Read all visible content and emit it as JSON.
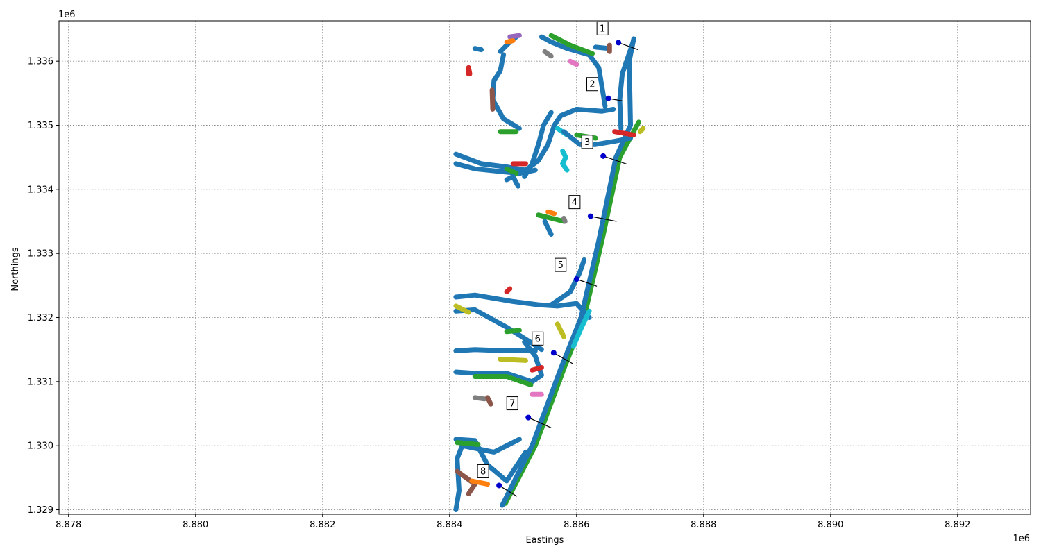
{
  "chart_data": {
    "type": "scatter",
    "title": "",
    "xlabel": "Eastings",
    "ylabel": "Northings",
    "x_offset_label": "1e6",
    "y_offset_label": "1e6",
    "xlim": [
      8.87785,
      8.89315
    ],
    "ylim": [
      1.32893,
      1.33663
    ],
    "x_ticks": [
      {
        "value": 8.878,
        "label": "8.878"
      },
      {
        "value": 8.88,
        "label": "8.880"
      },
      {
        "value": 8.882,
        "label": "8.882"
      },
      {
        "value": 8.884,
        "label": "8.884"
      },
      {
        "value": 8.886,
        "label": "8.886"
      },
      {
        "value": 8.888,
        "label": "8.888"
      },
      {
        "value": 8.89,
        "label": "8.890"
      },
      {
        "value": 8.892,
        "label": "8.892"
      }
    ],
    "y_ticks": [
      {
        "value": 1.329,
        "label": "1.329"
      },
      {
        "value": 1.33,
        "label": "1.330"
      },
      {
        "value": 1.331,
        "label": "1.331"
      },
      {
        "value": 1.332,
        "label": "1.332"
      },
      {
        "value": 1.333,
        "label": "1.333"
      },
      {
        "value": 1.334,
        "label": "1.334"
      },
      {
        "value": 1.335,
        "label": "1.335"
      },
      {
        "value": 1.336,
        "label": "1.336"
      }
    ],
    "grid": true,
    "grid_style": "dotted",
    "palette": [
      "#1f77b4",
      "#ff7f0e",
      "#2ca02c",
      "#d62728",
      "#9467bd",
      "#8c564b",
      "#e377c2",
      "#7f7f7f",
      "#bcbd22",
      "#17becf"
    ],
    "main_track_color": "#1f77b4",
    "marker_color": "#0000cd",
    "tracks": [
      {
        "color": "#2ca02c",
        "points": [
          [
            8.88488,
            1.3291
          ],
          [
            8.88535,
            1.33
          ],
          [
            8.8858,
            1.3312
          ],
          [
            8.88612,
            1.332
          ],
          [
            8.8864,
            1.3332
          ],
          [
            8.88668,
            1.3345
          ],
          [
            8.88698,
            1.33505
          ]
        ]
      },
      {
        "color": "#1f77b4",
        "points": [
          [
            8.88483,
            1.32907
          ],
          [
            8.8853,
            1.33
          ],
          [
            8.88575,
            1.3312
          ],
          [
            8.88607,
            1.332
          ],
          [
            8.88635,
            1.3332
          ],
          [
            8.88662,
            1.3345
          ],
          [
            8.88685,
            1.335
          ],
          [
            8.88683,
            1.336
          ],
          [
            8.8869,
            1.33635
          ]
        ]
      },
      {
        "color": "#1f77b4",
        "points": [
          [
            8.8867,
            1.33495
          ],
          [
            8.88668,
            1.3354
          ],
          [
            8.88672,
            1.3358
          ],
          [
            8.8869,
            1.33633
          ]
        ]
      },
      {
        "color": "#1f77b4",
        "points": [
          [
            8.8841,
            1.329
          ],
          [
            8.88415,
            1.3293
          ],
          [
            8.88412,
            1.3298
          ],
          [
            8.8842,
            1.33
          ],
          [
            8.8847,
            1.3299
          ],
          [
            8.885,
            1.33005
          ],
          [
            8.8851,
            1.3301
          ]
        ]
      },
      {
        "color": "#1f77b4",
        "points": [
          [
            8.8841,
            1.3301
          ],
          [
            8.8844,
            1.33008
          ],
          [
            8.8846,
            1.3297
          ],
          [
            8.8849,
            1.32945
          ],
          [
            8.885,
            1.3296
          ],
          [
            8.8852,
            1.3299
          ]
        ]
      },
      {
        "color": "#2ca02c",
        "points": [
          [
            8.88412,
            1.33005
          ],
          [
            8.88445,
            1.33002
          ]
        ]
      },
      {
        "color": "#8c564b",
        "points": [
          [
            8.88412,
            1.3296
          ],
          [
            8.8844,
            1.3294
          ],
          [
            8.8843,
            1.32925
          ]
        ]
      },
      {
        "color": "#ff7f0e",
        "points": [
          [
            8.88435,
            1.32945
          ],
          [
            8.8846,
            1.3294
          ]
        ]
      },
      {
        "color": "#1f77b4",
        "points": [
          [
            8.8841,
            1.33115
          ],
          [
            8.8844,
            1.33113
          ],
          [
            8.8849,
            1.33113
          ],
          [
            8.8853,
            1.331
          ],
          [
            8.88545,
            1.3311
          ],
          [
            8.88535,
            1.3314
          ],
          [
            8.88518,
            1.33162
          ]
        ]
      },
      {
        "color": "#1f77b4",
        "points": [
          [
            8.8841,
            1.33148
          ],
          [
            8.8844,
            1.3315
          ],
          [
            8.8849,
            1.33148
          ],
          [
            8.88535,
            1.33148
          ]
        ]
      },
      {
        "color": "#1f77b4",
        "points": [
          [
            8.8841,
            1.3321
          ],
          [
            8.8844,
            1.33212
          ],
          [
            8.8849,
            1.33185
          ],
          [
            8.8853,
            1.3316
          ],
          [
            8.88545,
            1.3315
          ]
        ]
      },
      {
        "color": "#1f77b4",
        "points": [
          [
            8.8841,
            1.33232
          ],
          [
            8.8844,
            1.33235
          ],
          [
            8.885,
            1.33225
          ],
          [
            8.8854,
            1.3322
          ],
          [
            8.8857,
            1.33218
          ],
          [
            8.886,
            1.33222
          ],
          [
            8.8862,
            1.332
          ]
        ]
      },
      {
        "color": "#2ca02c",
        "points": [
          [
            8.8844,
            1.33108
          ],
          [
            8.8849,
            1.33108
          ],
          [
            8.88528,
            1.33095
          ]
        ]
      },
      {
        "color": "#bcbd22",
        "points": [
          [
            8.8848,
            1.33135
          ],
          [
            8.8852,
            1.33133
          ]
        ]
      },
      {
        "color": "#bcbd22",
        "points": [
          [
            8.8841,
            1.33218
          ],
          [
            8.8843,
            1.33208
          ]
        ]
      },
      {
        "color": "#d62728",
        "points": [
          [
            8.8853,
            1.33118
          ],
          [
            8.88545,
            1.33122
          ]
        ]
      },
      {
        "color": "#bcbd22",
        "points": [
          [
            8.8857,
            1.3319
          ],
          [
            8.8858,
            1.3317
          ]
        ]
      },
      {
        "color": "#17becf",
        "points": [
          [
            8.88595,
            1.33155
          ],
          [
            8.88608,
            1.33185
          ],
          [
            8.8862,
            1.3321
          ]
        ]
      },
      {
        "color": "#1f77b4",
        "points": [
          [
            8.8856,
            1.3322
          ],
          [
            8.8859,
            1.3324
          ],
          [
            8.88605,
            1.3327
          ],
          [
            8.88612,
            1.3329
          ]
        ]
      },
      {
        "color": "#2ca02c",
        "points": [
          [
            8.8849,
            1.33178
          ],
          [
            8.8851,
            1.3318
          ]
        ]
      },
      {
        "color": "#d62728",
        "points": [
          [
            8.8849,
            1.3324
          ],
          [
            8.88495,
            1.33245
          ]
        ]
      },
      {
        "color": "#1f77b4",
        "points": [
          [
            8.8841,
            1.33455
          ],
          [
            8.8845,
            1.3344
          ],
          [
            8.8849,
            1.33435
          ],
          [
            8.8852,
            1.3343
          ],
          [
            8.8854,
            1.33445
          ],
          [
            8.88555,
            1.3347
          ],
          [
            8.88565,
            1.335
          ],
          [
            8.88575,
            1.33515
          ],
          [
            8.886,
            1.33525
          ],
          [
            8.8864,
            1.33522
          ],
          [
            8.88658,
            1.33525
          ]
        ]
      },
      {
        "color": "#1f77b4",
        "points": [
          [
            8.8841,
            1.3344
          ],
          [
            8.8844,
            1.33432
          ],
          [
            8.8848,
            1.33428
          ],
          [
            8.8851,
            1.33425
          ],
          [
            8.88535,
            1.3343
          ]
        ]
      },
      {
        "color": "#1f77b4",
        "points": [
          [
            8.88518,
            1.3342
          ],
          [
            8.8853,
            1.3344
          ],
          [
            8.8854,
            1.3347
          ],
          [
            8.88548,
            1.335
          ],
          [
            8.8856,
            1.3352
          ]
        ]
      },
      {
        "color": "#2ca02c",
        "points": [
          [
            8.8849,
            1.33432
          ],
          [
            8.88505,
            1.33425
          ]
        ]
      },
      {
        "color": "#d62728",
        "points": [
          [
            8.885,
            1.3344
          ],
          [
            8.8852,
            1.3344
          ]
        ]
      },
      {
        "color": "#1f77b4",
        "points": [
          [
            8.88508,
            1.33405
          ],
          [
            8.885,
            1.3342
          ],
          [
            8.8849,
            1.33415
          ]
        ]
      },
      {
        "color": "#1f77b4",
        "points": [
          [
            8.8851,
            1.33495
          ],
          [
            8.88485,
            1.3351
          ],
          [
            8.88468,
            1.3354
          ],
          [
            8.8847,
            1.3357
          ],
          [
            8.8848,
            1.33585
          ],
          [
            8.88485,
            1.3361
          ]
        ]
      },
      {
        "color": "#8c564b",
        "points": [
          [
            8.88467,
            1.33555
          ],
          [
            8.88468,
            1.33525
          ]
        ]
      },
      {
        "color": "#2ca02c",
        "points": [
          [
            8.8848,
            1.3349
          ],
          [
            8.88505,
            1.3349
          ]
        ]
      },
      {
        "color": "#1f77b4",
        "points": [
          [
            8.8848,
            1.33615
          ],
          [
            8.88495,
            1.3363
          ],
          [
            8.88505,
            1.33638
          ]
        ]
      },
      {
        "color": "#9467bd",
        "points": [
          [
            8.88495,
            1.33638
          ],
          [
            8.8851,
            1.3364
          ]
        ]
      },
      {
        "color": "#ff7f0e",
        "points": [
          [
            8.8849,
            1.3363
          ],
          [
            8.885,
            1.33632
          ]
        ]
      },
      {
        "color": "#1f77b4",
        "points": [
          [
            8.8844,
            1.3362
          ],
          [
            8.8845,
            1.33618
          ]
        ]
      },
      {
        "color": "#d62728",
        "points": [
          [
            8.8843,
            1.3359
          ],
          [
            8.8843,
            1.3358
          ]
        ]
      },
      {
        "color": "#1f77b4",
        "points": [
          [
            8.88545,
            1.33638
          ],
          [
            8.8856,
            1.3363
          ],
          [
            8.88585,
            1.3362
          ],
          [
            8.8862,
            1.3361
          ],
          [
            8.88635,
            1.3359
          ],
          [
            8.8864,
            1.3356
          ],
          [
            8.88645,
            1.3353
          ]
        ]
      },
      {
        "color": "#2ca02c",
        "points": [
          [
            8.8856,
            1.3364
          ],
          [
            8.8859,
            1.33625
          ],
          [
            8.88625,
            1.33612
          ]
        ]
      },
      {
        "color": "#e377c2",
        "points": [
          [
            8.8859,
            1.336
          ],
          [
            8.886,
            1.33595
          ]
        ]
      },
      {
        "color": "#1f77b4",
        "points": [
          [
            8.8863,
            1.33622
          ],
          [
            8.8865,
            1.3362
          ]
        ]
      },
      {
        "color": "#8c564b",
        "points": [
          [
            8.88652,
            1.33625
          ],
          [
            8.88652,
            1.33615
          ]
        ]
      },
      {
        "color": "#7f7f7f",
        "points": [
          [
            8.8855,
            1.33615
          ],
          [
            8.8856,
            1.33608
          ]
        ]
      },
      {
        "color": "#17becf",
        "points": [
          [
            8.8857,
            1.33495
          ],
          [
            8.88585,
            1.33485
          ]
        ]
      },
      {
        "color": "#1f77b4",
        "points": [
          [
            8.8858,
            1.3349
          ],
          [
            8.88605,
            1.3347
          ],
          [
            8.8863,
            1.3347
          ],
          [
            8.8866,
            1.33475
          ],
          [
            8.88685,
            1.3348
          ]
        ]
      },
      {
        "color": "#2ca02c",
        "points": [
          [
            8.886,
            1.33485
          ],
          [
            8.8863,
            1.3348
          ]
        ]
      },
      {
        "color": "#d62728",
        "points": [
          [
            8.8866,
            1.3349
          ],
          [
            8.8869,
            1.33485
          ]
        ]
      },
      {
        "color": "#bcbd22",
        "points": [
          [
            8.887,
            1.3349
          ],
          [
            8.88705,
            1.33495
          ]
        ]
      },
      {
        "color": "#7f7f7f",
        "points": [
          [
            8.8861,
            1.3347
          ],
          [
            8.88615,
            1.3347
          ]
        ]
      },
      {
        "color": "#17becf",
        "points": [
          [
            8.88578,
            1.3346
          ],
          [
            8.88583,
            1.3345
          ],
          [
            8.88578,
            1.3344
          ],
          [
            8.88585,
            1.3343
          ]
        ]
      },
      {
        "color": "#2ca02c",
        "points": [
          [
            8.8854,
            1.3336
          ],
          [
            8.8856,
            1.33355
          ],
          [
            8.8858,
            1.3335
          ]
        ]
      },
      {
        "color": "#1f77b4",
        "points": [
          [
            8.8855,
            1.3335
          ],
          [
            8.8856,
            1.3333
          ]
        ]
      },
      {
        "color": "#ff7f0e",
        "points": [
          [
            8.88555,
            1.33365
          ],
          [
            8.88565,
            1.33362
          ]
        ]
      },
      {
        "color": "#7f7f7f",
        "points": [
          [
            8.8858,
            1.33355
          ],
          [
            8.88582,
            1.3335
          ]
        ]
      },
      {
        "color": "#d62728",
        "points": [
          [
            8.8843,
            1.3359
          ],
          [
            8.88432,
            1.3358
          ]
        ]
      },
      {
        "color": "#e377c2",
        "points": [
          [
            8.8853,
            1.3308
          ],
          [
            8.88545,
            1.3308
          ]
        ]
      },
      {
        "color": "#7f7f7f",
        "points": [
          [
            8.8844,
            1.33075
          ],
          [
            8.88455,
            1.33073
          ]
        ]
      },
      {
        "color": "#8c564b",
        "points": [
          [
            8.8846,
            1.33075
          ],
          [
            8.88465,
            1.33065
          ]
        ]
      }
    ],
    "markers": [
      {
        "label": "1",
        "x": 8.88666,
        "y": 1.33629,
        "tail": [
          8.88697,
          1.33618
        ]
      },
      {
        "label": "2",
        "x": 8.8865,
        "y": 1.33542,
        "tail": [
          8.88673,
          1.33538
        ]
      },
      {
        "label": "3",
        "x": 8.88642,
        "y": 1.33452,
        "tail": [
          8.8868,
          1.33439
        ]
      },
      {
        "label": "4",
        "x": 8.88622,
        "y": 1.33358,
        "tail": [
          8.88663,
          1.3335
        ]
      },
      {
        "label": "5",
        "x": 8.886,
        "y": 1.3326,
        "tail": [
          8.88632,
          1.33249
        ]
      },
      {
        "label": "6",
        "x": 8.88564,
        "y": 1.33145,
        "tail": [
          8.88594,
          1.33128
        ]
      },
      {
        "label": "7",
        "x": 8.88524,
        "y": 1.33044,
        "tail": [
          8.8856,
          1.33028
        ]
      },
      {
        "label": "8",
        "x": 8.88478,
        "y": 1.32938,
        "tail": [
          8.88506,
          1.32921
        ]
      }
    ]
  }
}
